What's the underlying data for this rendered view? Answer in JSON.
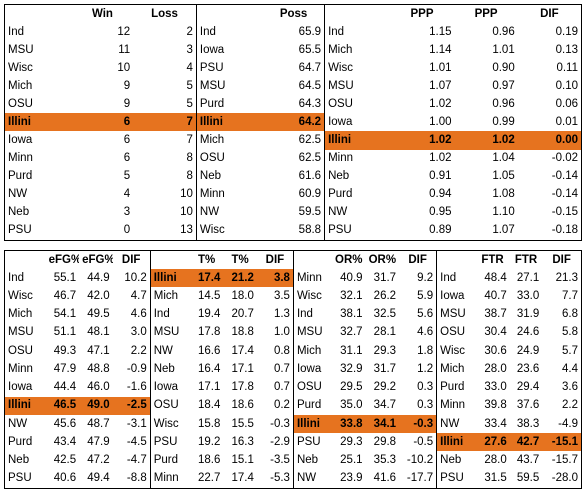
{
  "top": {
    "record": {
      "headers": [
        "",
        "Win",
        "Loss"
      ],
      "rows": [
        [
          "Ind",
          "12",
          "2"
        ],
        [
          "MSU",
          "11",
          "3"
        ],
        [
          "Wisc",
          "10",
          "4"
        ],
        [
          "Mich",
          "9",
          "5"
        ],
        [
          "OSU",
          "9",
          "5"
        ],
        [
          "Illini",
          "6",
          "7"
        ],
        [
          "Iowa",
          "6",
          "7"
        ],
        [
          "Minn",
          "6",
          "8"
        ],
        [
          "Purd",
          "5",
          "8"
        ],
        [
          "NW",
          "4",
          "10"
        ],
        [
          "Neb",
          "3",
          "10"
        ],
        [
          "PSU",
          "0",
          "13"
        ]
      ],
      "highlight_row": 5
    },
    "poss": {
      "headers": [
        "",
        "Poss"
      ],
      "rows": [
        [
          "Ind",
          "65.9"
        ],
        [
          "Iowa",
          "65.5"
        ],
        [
          "PSU",
          "64.7"
        ],
        [
          "MSU",
          "64.5"
        ],
        [
          "Purd",
          "64.3"
        ],
        [
          "Illini",
          "64.2"
        ],
        [
          "Mich",
          "62.5"
        ],
        [
          "OSU",
          "62.5"
        ],
        [
          "Neb",
          "61.6"
        ],
        [
          "Minn",
          "60.9"
        ],
        [
          "NW",
          "59.5"
        ],
        [
          "Wisc",
          "58.8"
        ]
      ],
      "highlight_row": 5
    },
    "ppp": {
      "headers": [
        "",
        "PPP",
        "PPP",
        "DIF"
      ],
      "rows": [
        [
          "Ind",
          "1.15",
          "0.96",
          "0.19"
        ],
        [
          "Mich",
          "1.14",
          "1.01",
          "0.13"
        ],
        [
          "Wisc",
          "1.01",
          "0.90",
          "0.11"
        ],
        [
          "MSU",
          "1.07",
          "0.97",
          "0.10"
        ],
        [
          "OSU",
          "1.02",
          "0.96",
          "0.06"
        ],
        [
          "Iowa",
          "1.00",
          "0.99",
          "0.01"
        ],
        [
          "Illini",
          "1.02",
          "1.02",
          "0.00"
        ],
        [
          "Minn",
          "1.02",
          "1.04",
          "-0.02"
        ],
        [
          "Neb",
          "0.91",
          "1.05",
          "-0.14"
        ],
        [
          "Purd",
          "0.94",
          "1.08",
          "-0.14"
        ],
        [
          "NW",
          "0.95",
          "1.10",
          "-0.15"
        ],
        [
          "PSU",
          "0.89",
          "1.07",
          "-0.18"
        ]
      ],
      "highlight_row": 6
    }
  },
  "bottom": {
    "efg": {
      "headers": [
        "",
        "eFG%",
        "eFG%",
        "DIF"
      ],
      "rows": [
        [
          "Ind",
          "55.1",
          "44.9",
          "10.2"
        ],
        [
          "Wisc",
          "46.7",
          "42.0",
          "4.7"
        ],
        [
          "Mich",
          "54.1",
          "49.5",
          "4.6"
        ],
        [
          "MSU",
          "51.1",
          "48.1",
          "3.0"
        ],
        [
          "OSU",
          "49.3",
          "47.1",
          "2.2"
        ],
        [
          "Minn",
          "47.9",
          "48.8",
          "-0.9"
        ],
        [
          "Iowa",
          "44.4",
          "46.0",
          "-1.6"
        ],
        [
          "Illini",
          "46.5",
          "49.0",
          "-2.5"
        ],
        [
          "NW",
          "45.6",
          "48.7",
          "-3.1"
        ],
        [
          "Purd",
          "43.4",
          "47.9",
          "-4.5"
        ],
        [
          "Neb",
          "42.5",
          "47.2",
          "-4.7"
        ],
        [
          "PSU",
          "40.6",
          "49.4",
          "-8.8"
        ]
      ],
      "highlight_row": 7
    },
    "to": {
      "headers": [
        "",
        "T%",
        "T%",
        "DIF"
      ],
      "rows": [
        [
          "Illini",
          "17.4",
          "21.2",
          "3.8"
        ],
        [
          "Mich",
          "14.5",
          "18.0",
          "3.5"
        ],
        [
          "Ind",
          "19.4",
          "20.7",
          "1.3"
        ],
        [
          "MSU",
          "17.8",
          "18.8",
          "1.0"
        ],
        [
          "NW",
          "16.6",
          "17.4",
          "0.8"
        ],
        [
          "Neb",
          "16.4",
          "17.1",
          "0.7"
        ],
        [
          "Iowa",
          "17.1",
          "17.8",
          "0.7"
        ],
        [
          "OSU",
          "18.4",
          "18.6",
          "0.2"
        ],
        [
          "Wisc",
          "15.8",
          "15.5",
          "-0.3"
        ],
        [
          "PSU",
          "19.2",
          "16.3",
          "-2.9"
        ],
        [
          "Purd",
          "18.6",
          "15.1",
          "-3.5"
        ],
        [
          "Minn",
          "22.7",
          "17.4",
          "-5.3"
        ]
      ],
      "highlight_row": 0
    },
    "or": {
      "headers": [
        "",
        "OR%",
        "OR%",
        "DIF"
      ],
      "rows": [
        [
          "Minn",
          "40.9",
          "31.7",
          "9.2"
        ],
        [
          "Wisc",
          "32.1",
          "26.2",
          "5.9"
        ],
        [
          "Ind",
          "38.1",
          "32.5",
          "5.6"
        ],
        [
          "MSU",
          "32.7",
          "28.1",
          "4.6"
        ],
        [
          "Mich",
          "31.1",
          "29.3",
          "1.8"
        ],
        [
          "Iowa",
          "32.9",
          "31.7",
          "1.2"
        ],
        [
          "OSU",
          "29.5",
          "29.2",
          "0.3"
        ],
        [
          "Purd",
          "35.0",
          "34.7",
          "0.3"
        ],
        [
          "Illini",
          "33.8",
          "34.1",
          "-0.3"
        ],
        [
          "PSU",
          "29.3",
          "29.8",
          "-0.5"
        ],
        [
          "Neb",
          "25.1",
          "35.3",
          "-10.2"
        ],
        [
          "NW",
          "23.9",
          "41.6",
          "-17.7"
        ]
      ],
      "highlight_row": 8
    },
    "ftr": {
      "headers": [
        "",
        "FTR",
        "FTR",
        "DIF"
      ],
      "rows": [
        [
          "Ind",
          "48.4",
          "27.1",
          "21.3"
        ],
        [
          "Iowa",
          "40.7",
          "33.0",
          "7.7"
        ],
        [
          "MSU",
          "38.7",
          "31.9",
          "6.8"
        ],
        [
          "OSU",
          "30.4",
          "24.6",
          "5.8"
        ],
        [
          "Wisc",
          "30.6",
          "24.9",
          "5.7"
        ],
        [
          "Mich",
          "28.0",
          "23.6",
          "4.4"
        ],
        [
          "Purd",
          "33.0",
          "29.4",
          "3.6"
        ],
        [
          "Minn",
          "39.8",
          "37.6",
          "2.2"
        ],
        [
          "NW",
          "33.4",
          "38.3",
          "-4.9"
        ],
        [
          "Illini",
          "27.6",
          "42.7",
          "-15.1"
        ],
        [
          "Neb",
          "28.0",
          "43.7",
          "-15.7"
        ],
        [
          "PSU",
          "31.5",
          "59.5",
          "-28.0"
        ]
      ],
      "highlight_row": 9
    }
  },
  "colors": {
    "highlight": "#e6731f",
    "border": "#000000"
  }
}
